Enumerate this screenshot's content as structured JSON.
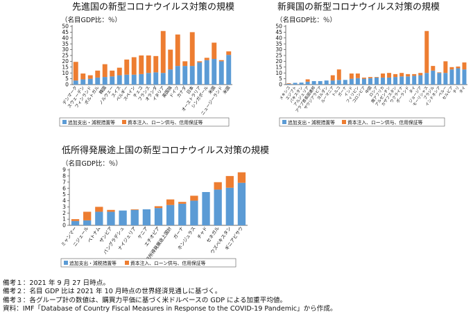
{
  "chart_data": [
    {
      "type": "bar",
      "stacked": true,
      "title": "先進国の新型コロナウイルス対策の規模",
      "ylabel": "（名目GDP比：％）",
      "ylim": [
        0,
        50
      ],
      "yticks": [
        0,
        5,
        10,
        15,
        20,
        25,
        30,
        35,
        40,
        45,
        50
      ],
      "legend_position": "bottom",
      "categories": [
        "デンマーク",
        "スウェーデン",
        "フィンランド",
        "ポルトガル",
        "韓国",
        "ノルウェー",
        "スイス",
        "ベルギー",
        "スペイン",
        "チェコ",
        "フランス",
        "オランダ",
        "イタリア",
        "英国独",
        "ドイツ",
        "カナダ",
        "日本",
        "オーストラリア",
        "シンガポール",
        "米国",
        "ニュージーランド",
        "米国"
      ],
      "series": [
        {
          "name": "追加支出・減税措置等",
          "color": "#5b9bd5",
          "values": [
            3.5,
            4.5,
            5,
            6,
            6.5,
            7,
            8,
            8.5,
            8.5,
            9,
            10,
            10.5,
            10,
            13,
            16,
            16,
            16,
            19,
            21,
            22,
            20,
            25.5
          ]
        },
        {
          "name": "資本注入、ローン供与、信用保証等",
          "color": "#ed7d31",
          "values": [
            16,
            5,
            3,
            6,
            11,
            5,
            6.5,
            13,
            15,
            16,
            15,
            14,
            36,
            17,
            27,
            4,
            29,
            1,
            2,
            14,
            1,
            3
          ]
        }
      ]
    },
    {
      "type": "bar",
      "stacked": true,
      "title": "新興国の新型コロナウイルス対策の規模",
      "ylabel": "（名目GDP比：％）",
      "ylim": [
        0,
        50
      ],
      "yticks": [
        0,
        5,
        10,
        15,
        20,
        25,
        30,
        35,
        40,
        45,
        50
      ],
      "legend_position": "bottom",
      "categories": [
        "メキシコ",
        "エジプト",
        "パキスタン",
        "アルジェリア",
        "アラブ首長国連邦",
        "サウジアラビア",
        "ヨルダン",
        "ルーマニア",
        "トルコ",
        "ガーナ",
        "インド",
        "フィリピン",
        "コロンビア",
        "中国",
        "ロシア",
        "南アフリカ",
        "アルゼンチン",
        "カザフスタン",
        "ウクライナ",
        "ポーランド",
        "タイ",
        "ジョージア",
        "モーリシャス",
        "ブラジル",
        "インドネシア",
        "ペルー",
        "セルビア",
        "チリ",
        "タイ"
      ],
      "series": [
        {
          "name": "追加支出・減税措置等",
          "color": "#5b9bd5",
          "values": [
            0.7,
            1.5,
            1.7,
            2.5,
            3,
            3,
            3.5,
            3.5,
            4,
            4,
            5,
            5.5,
            5,
            5.5,
            6,
            6,
            6,
            6.5,
            7,
            7,
            7.5,
            8,
            10,
            12,
            10,
            10,
            13,
            14,
            13
          ]
        },
        {
          "name": "資本注入、ローン供与、信用保証等",
          "color": "#ed7d31",
          "values": [
            0.5,
            0,
            0,
            2,
            0,
            0,
            0,
            4.5,
            9,
            0,
            4.5,
            4,
            1,
            1,
            0.5,
            3.5,
            4,
            2.5,
            3,
            2,
            1.5,
            2,
            36,
            4,
            0.5,
            10,
            2,
            1.5,
            6
          ]
        }
      ]
    },
    {
      "type": "bar",
      "stacked": true,
      "title": "低所得発展途上国の新型コロナウイルス対策の規模",
      "ylabel": "（名目GDP比：％）",
      "ylim": [
        0,
        9
      ],
      "yticks": [
        0,
        1,
        2,
        3,
        4,
        5,
        6,
        7,
        8,
        9
      ],
      "legend_position": "bottom",
      "categories": [
        "ミャンマー",
        "ニジェール",
        "ベトナム",
        "ザンビア",
        "バングラデシュ",
        "ナイジェリア",
        "ケニア",
        "エチオピア",
        "低所得発展途上国計",
        "ガーナ",
        "ホンジュラス",
        "チャド",
        "セネガル",
        "ウズベキスタン",
        "ギニアビサウ"
      ],
      "series": [
        {
          "name": "追加支出・減税措置等",
          "color": "#5b9bd5",
          "values": [
            0.7,
            0.8,
            2.2,
            2.2,
            2.4,
            2.5,
            2.6,
            2.8,
            3.3,
            3.5,
            4,
            5.4,
            5.8,
            6.1,
            6.9
          ]
        },
        {
          "name": "資本注入、ローン供与、信用保証等",
          "color": "#ed7d31",
          "values": [
            0.3,
            1.4,
            0.8,
            0.3,
            0,
            0.1,
            0,
            0.3,
            0.9,
            0.3,
            0.8,
            0,
            1.2,
            1.9,
            1.7
          ]
        }
      ]
    }
  ],
  "legend": {
    "series_a": "追加支出・減税措置等",
    "series_b": "資本注入、ローン供与、信用保証等"
  },
  "notes": [
    "備考１：2021 年 9 月 27 日時点。",
    "備考２：名目 GDP 比は 2021 年 10 月時点の世界経済見通しに基づく。",
    "備考３：各グループ計の数値は、購買力平価に基づく米ドルベースの GDP による加重平均値。",
    "資料：IMF「Database of Country Fiscal Measures in Response to the COVID-19 Pandemic」から作成。"
  ]
}
